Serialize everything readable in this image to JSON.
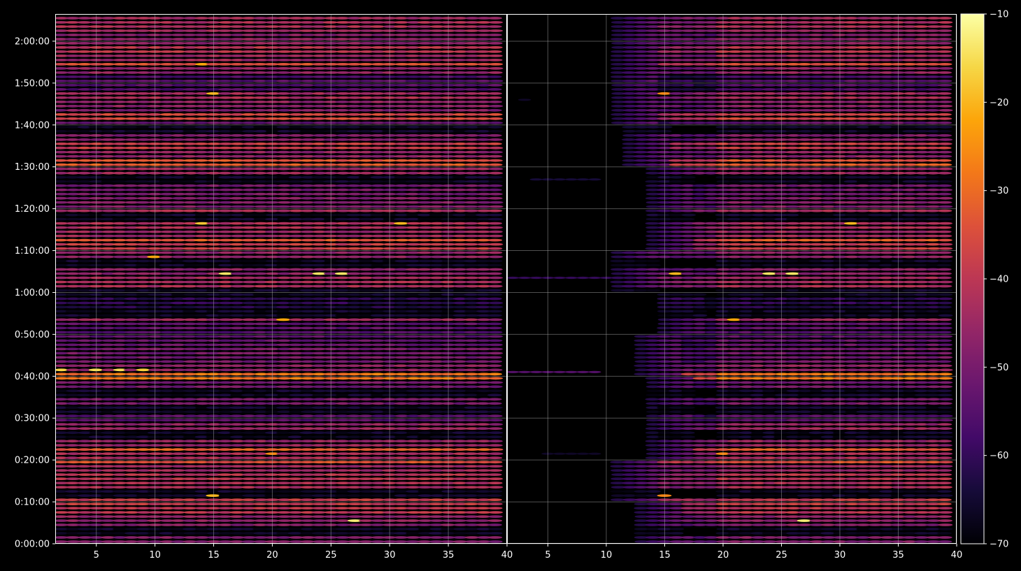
{
  "chart_data": [
    {
      "type": "heatmap",
      "title": "",
      "xlabel": "",
      "ylabel": "",
      "xlim": [
        1.5,
        40
      ],
      "ylim": [
        0,
        7590
      ],
      "x_ticks": [
        5,
        10,
        15,
        20,
        25,
        30,
        35,
        40
      ],
      "x_tick_labels": [
        "5",
        "10",
        "15",
        "20",
        "25",
        "30",
        "35",
        "40"
      ],
      "y_ticks": [
        0,
        600,
        1200,
        1800,
        2400,
        3000,
        3600,
        4200,
        4800,
        5400,
        6000,
        6600,
        7200
      ],
      "y_tick_labels": [
        "0:00:00",
        "0:10:00",
        "0:20:00",
        "0:30:00",
        "0:40:00",
        "0:50:00",
        "1:00:00",
        "1:10:00",
        "1:20:00",
        "1:30:00",
        "1:40:00",
        "1:50:00",
        "2:00:00"
      ],
      "grid": true,
      "x_step": 1,
      "band_rows_sec": [
        60,
        360,
        480,
        600,
        840,
        960,
        1080,
        1140,
        1260,
        1320,
        1440,
        1500,
        1620,
        1800,
        2040,
        2280,
        2400,
        2520,
        2640,
        2760,
        2880,
        3120,
        3180,
        3480,
        3720,
        3900,
        4140,
        4260,
        4320,
        4440,
        4560,
        4740,
        4800,
        4920,
        5100,
        5340,
        5400,
        5580,
        5700,
        5820,
        6000,
        6120,
        6180,
        6300,
        6360,
        6600,
        6780,
        6840,
        6960,
        7080,
        7200,
        7440
      ],
      "band_level_db": [
        -40,
        -38,
        -32,
        -30,
        -34,
        -32,
        -36,
        -26,
        -34,
        -24,
        -37,
        -34,
        -36,
        -46,
        -42,
        -42,
        -20,
        -38,
        -42,
        -42,
        -44,
        -45,
        -36,
        -52,
        -34,
        -39,
        -38,
        -30,
        -24,
        -36,
        -34,
        -34,
        -40,
        -40,
        -42,
        -36,
        -24,
        -38,
        -30,
        -40,
        -44,
        -28,
        -40,
        -38,
        -34,
        -46,
        -38,
        -26,
        -36,
        -32,
        -38,
        -34
      ],
      "gap_rows_sec": [
        180,
        720,
        1560,
        1920,
        2160,
        3300,
        3600,
        4020,
        4680,
        5220,
        5940
      ],
      "highlights": [
        {
          "x": 27,
          "t": 300,
          "db": -13
        },
        {
          "x": 15,
          "t": 660,
          "db": -20
        },
        {
          "x": 20,
          "t": 1260,
          "db": -26
        },
        {
          "x": 2,
          "t": 2460,
          "db": -16
        },
        {
          "x": 5,
          "t": 2460,
          "db": -15
        },
        {
          "x": 7,
          "t": 2460,
          "db": -15
        },
        {
          "x": 9,
          "t": 2460,
          "db": -17
        },
        {
          "x": 34,
          "t": 2340,
          "db": -28
        },
        {
          "x": 21,
          "t": 3180,
          "db": -22
        },
        {
          "x": 16,
          "t": 3840,
          "db": -14
        },
        {
          "x": 24,
          "t": 3840,
          "db": -14
        },
        {
          "x": 26,
          "t": 3840,
          "db": -14
        },
        {
          "x": 10,
          "t": 4080,
          "db": -22
        },
        {
          "x": 14,
          "t": 4560,
          "db": -18
        },
        {
          "x": 31,
          "t": 4560,
          "db": -20
        },
        {
          "x": 15,
          "t": 6420,
          "db": -20
        },
        {
          "x": 14,
          "t": 6840,
          "db": -22
        }
      ]
    },
    {
      "type": "heatmap",
      "title": "",
      "xlabel": "",
      "ylabel": "",
      "xlim": [
        1.5,
        40
      ],
      "ylim": [
        0,
        7590
      ],
      "x_ticks": [
        5,
        10,
        15,
        20,
        25,
        30,
        35,
        40
      ],
      "x_tick_labels": [
        "5",
        "10",
        "15",
        "20",
        "25",
        "30",
        "35",
        "40"
      ],
      "grid": true,
      "dark_floor_db": -70,
      "onset_x": [
        {
          "t_from": 0,
          "t_to": 600,
          "x": 13
        },
        {
          "t_from": 600,
          "t_to": 1200,
          "x": 11
        },
        {
          "t_from": 1200,
          "t_to": 2400,
          "x": 14
        },
        {
          "t_from": 2400,
          "t_to": 3000,
          "x": 13
        },
        {
          "t_from": 3000,
          "t_to": 3600,
          "x": 15
        },
        {
          "t_from": 3600,
          "t_to": 4200,
          "x": 11
        },
        {
          "t_from": 4200,
          "t_to": 5400,
          "x": 14
        },
        {
          "t_from": 5400,
          "t_to": 6000,
          "x": 12
        },
        {
          "t_from": 6000,
          "t_to": 7590,
          "x": 11
        }
      ],
      "stray_marks": [
        {
          "x": 2,
          "x_to": 9,
          "t": 2460,
          "db": -55
        },
        {
          "x": 2,
          "x_to": 12,
          "t": 3810,
          "db": -60
        },
        {
          "x": 4,
          "x_to": 9,
          "t": 5220,
          "db": -64
        },
        {
          "x": 3,
          "t": 6360,
          "db": -66
        },
        {
          "x": 5,
          "x_to": 9,
          "t": 1290,
          "db": -66
        }
      ]
    }
  ],
  "colorbar": {
    "colormap": "inferno",
    "range_db": [
      -70,
      -10
    ],
    "ticks": [
      -10,
      -20,
      -30,
      -40,
      -50,
      -60,
      -70
    ],
    "tick_labels": [
      "−10",
      "−20",
      "−30",
      "−40",
      "−50",
      "−60",
      "−70"
    ]
  },
  "colors": {
    "background": "#000000",
    "axes_face": "#000000",
    "text": "#ffffff",
    "spine": "#ffffff",
    "grid": "#b0b0b0"
  }
}
